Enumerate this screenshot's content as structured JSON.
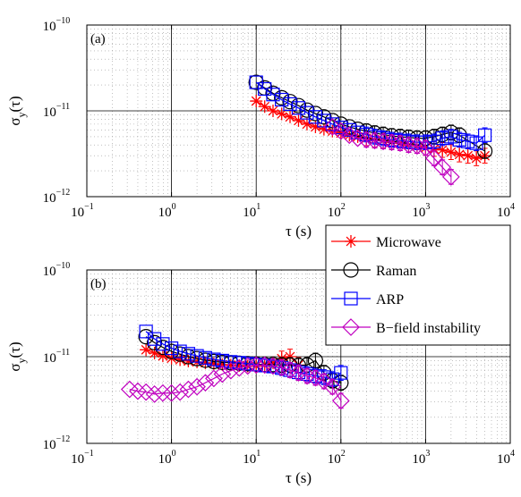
{
  "chart_data": [
    {
      "panel_label": "(a)",
      "type": "line",
      "x_scale": "log",
      "y_scale": "log",
      "xlim": [
        0.1,
        10000
      ],
      "ylim": [
        1e-12,
        1e-10
      ],
      "x_ticks": [
        {
          "base": "10",
          "exp": "−1"
        },
        {
          "base": "10",
          "exp": "0"
        },
        {
          "base": "10",
          "exp": "1"
        },
        {
          "base": "10",
          "exp": "2"
        },
        {
          "base": "10",
          "exp": "3"
        },
        {
          "base": "10",
          "exp": "4"
        }
      ],
      "y_ticks": [
        {
          "base": "10",
          "exp": "−12"
        },
        {
          "base": "10",
          "exp": "−11"
        },
        {
          "base": "10",
          "exp": "−10"
        }
      ],
      "xlabel": "τ (s)",
      "ylabel": {
        "main": "σ",
        "sub": "y",
        "tail": "(τ)"
      },
      "grid": true,
      "series": [
        {
          "name": "Microwave",
          "color": "#ff0000",
          "marker": "star",
          "x": [
            10,
            12.6,
            15.8,
            20,
            25.1,
            31.6,
            39.8,
            50.1,
            63.1,
            79.4,
            100,
            126,
            158,
            200,
            251,
            316,
            398,
            501,
            631,
            794,
            1000,
            1260,
            1580,
            2000,
            2510,
            3160,
            3980,
            5010
          ],
          "y": [
            1.3e-11,
            1.12e-11,
            1e-11,
            9.2e-12,
            8.5e-12,
            7.7e-12,
            7e-12,
            6.5e-12,
            6.1e-12,
            5.8e-12,
            5.5e-12,
            5.2e-12,
            5e-12,
            4.8e-12,
            4.6e-12,
            4.5e-12,
            4.3e-12,
            4.2e-12,
            4e-12,
            3.9e-12,
            3.7e-12,
            3.6e-12,
            3.5e-12,
            3.3e-12,
            3.1e-12,
            3e-12,
            2.8e-12,
            3e-12
          ]
        },
        {
          "name": "Raman",
          "color": "#000000",
          "marker": "circle",
          "x": [
            10,
            12.6,
            15.8,
            20,
            25.1,
            31.6,
            39.8,
            50.1,
            63.1,
            79.4,
            100,
            126,
            158,
            200,
            251,
            316,
            398,
            501,
            631,
            794,
            1000,
            1260,
            1580,
            2000,
            2510,
            5010
          ],
          "y": [
            2.15e-11,
            1.85e-11,
            1.6e-11,
            1.42e-11,
            1.28e-11,
            1.15e-11,
            1.02e-11,
            9.3e-12,
            8.5e-12,
            7.7e-12,
            7e-12,
            6.5e-12,
            6.1e-12,
            5.8e-12,
            5.5e-12,
            5.3e-12,
            5.1e-12,
            5e-12,
            4.9e-12,
            4.8e-12,
            4.8e-12,
            5e-12,
            5.3e-12,
            5.6e-12,
            5.2e-12,
            3.4e-12
          ]
        },
        {
          "name": "ARP",
          "color": "#0000ff",
          "marker": "square",
          "x": [
            10,
            12.6,
            15.8,
            20,
            25.1,
            31.6,
            39.8,
            50.1,
            63.1,
            79.4,
            100,
            126,
            158,
            200,
            251,
            316,
            398,
            501,
            631,
            794,
            1000,
            1260,
            1580,
            2000,
            2510,
            3160,
            3980,
            5010
          ],
          "y": [
            2.15e-11,
            1.8e-11,
            1.55e-11,
            1.35e-11,
            1.2e-11,
            1.08e-11,
            9.5e-12,
            8.5e-12,
            7.7e-12,
            7e-12,
            6.4e-12,
            6e-12,
            5.6e-12,
            5.3e-12,
            5e-12,
            4.8e-12,
            4.6e-12,
            4.5e-12,
            4.4e-12,
            4.3e-12,
            4.3e-12,
            4.4e-12,
            4.8e-12,
            5e-12,
            4.6e-12,
            4.4e-12,
            4.2e-12,
            5.2e-12
          ]
        },
        {
          "name": "B−field instability",
          "color": "#c000c0",
          "marker": "diamond",
          "x": [
            79.4,
            100,
            126,
            158,
            200,
            251,
            316,
            398,
            501,
            631,
            794,
            1000,
            1260,
            1580,
            2000
          ],
          "y": [
            6.5e-12,
            5.8e-12,
            5.2e-12,
            4.8e-12,
            4.6e-12,
            4.5e-12,
            4.4e-12,
            4.3e-12,
            4.2e-12,
            4e-12,
            3.9e-12,
            3.7e-12,
            2.8e-12,
            2.2e-12,
            1.7e-12
          ]
        }
      ]
    },
    {
      "panel_label": "(b)",
      "type": "line",
      "x_scale": "log",
      "y_scale": "log",
      "xlim": [
        0.1,
        10000
      ],
      "ylim": [
        1e-12,
        1e-10
      ],
      "x_ticks": [
        {
          "base": "10",
          "exp": "−1"
        },
        {
          "base": "10",
          "exp": "0"
        },
        {
          "base": "10",
          "exp": "1"
        },
        {
          "base": "10",
          "exp": "2"
        },
        {
          "base": "10",
          "exp": "3"
        },
        {
          "base": "10",
          "exp": "4"
        }
      ],
      "y_ticks": [
        {
          "base": "10",
          "exp": "−12"
        },
        {
          "base": "10",
          "exp": "−11"
        },
        {
          "base": "10",
          "exp": "−10"
        }
      ],
      "xlabel": "τ (s)",
      "ylabel": {
        "main": "σ",
        "sub": "y",
        "tail": "(τ)"
      },
      "grid": true,
      "legend_position": "top-right",
      "series": [
        {
          "name": "Microwave",
          "color": "#ff0000",
          "marker": "star",
          "x": [
            0.5,
            0.63,
            0.79,
            1.0,
            1.26,
            1.58,
            2.0,
            2.51,
            3.16,
            3.98,
            5.01,
            6.31,
            7.94,
            10,
            12.6,
            15.8,
            20,
            25.1,
            31.6
          ],
          "y": [
            1.2e-11,
            1.1e-11,
            1.02e-11,
            9.6e-12,
            9.2e-12,
            8.9e-12,
            8.7e-12,
            8.5e-12,
            8.3e-12,
            8.1e-12,
            8e-12,
            7.9e-12,
            7.8e-12,
            7.8e-12,
            8e-12,
            8.5e-12,
            9.5e-12,
            1e-11,
            8e-12
          ]
        },
        {
          "name": "Raman",
          "color": "#000000",
          "marker": "circle",
          "x": [
            0.5,
            0.63,
            0.79,
            1.0,
            1.26,
            1.58,
            2.0,
            2.51,
            3.16,
            3.98,
            5.01,
            6.31,
            7.94,
            10,
            12.6,
            15.8,
            20,
            25.1,
            31.6,
            39.8,
            50.1,
            63.1,
            79.4,
            100
          ],
          "y": [
            1.7e-11,
            1.45e-11,
            1.28e-11,
            1.15e-11,
            1.07e-11,
            1e-11,
            9.5e-12,
            9.1e-12,
            8.8e-12,
            8.6e-12,
            8.5e-12,
            8.4e-12,
            8.3e-12,
            8.2e-12,
            8.1e-12,
            8.1e-12,
            8e-12,
            8e-12,
            7.9e-12,
            8e-12,
            9e-12,
            6.5e-12,
            5.3e-12,
            5e-12
          ]
        },
        {
          "name": "ARP",
          "color": "#0000ff",
          "marker": "square",
          "x": [
            0.5,
            0.63,
            0.79,
            1.0,
            1.26,
            1.58,
            2.0,
            2.51,
            3.16,
            3.98,
            5.01,
            6.31,
            7.94,
            10,
            12.6,
            15.8,
            20,
            25.1,
            31.6,
            39.8,
            50.1,
            63.1,
            79.4,
            100
          ],
          "y": [
            1.95e-11,
            1.6e-11,
            1.4e-11,
            1.25e-11,
            1.15e-11,
            1.08e-11,
            1.02e-11,
            9.7e-12,
            9.3e-12,
            9e-12,
            8.7e-12,
            8.5e-12,
            8.3e-12,
            8.1e-12,
            7.9e-12,
            7.7e-12,
            7.4e-12,
            7e-12,
            6.6e-12,
            6.3e-12,
            6e-12,
            5.8e-12,
            5.5e-12,
            6.5e-12
          ]
        },
        {
          "name": "B−field instability",
          "color": "#c000c0",
          "marker": "diamond",
          "x": [
            0.32,
            0.4,
            0.5,
            0.63,
            0.79,
            1.0,
            1.26,
            1.58,
            2.0,
            2.51,
            3.16,
            3.98,
            5.01,
            6.31,
            7.94,
            10,
            12.6,
            15.8,
            20,
            25.1,
            31.6,
            39.8,
            50.1,
            63.1,
            79.4,
            100
          ],
          "y": [
            4.2e-12,
            4e-12,
            3.9e-12,
            3.7e-12,
            3.8e-12,
            3.8e-12,
            3.9e-12,
            4.2e-12,
            4.5e-12,
            5e-12,
            5.6e-12,
            6.3e-12,
            6.9e-12,
            7.4e-12,
            7.8e-12,
            8e-12,
            8e-12,
            7.8e-12,
            7.5e-12,
            7e-12,
            6.5e-12,
            6e-12,
            5.7e-12,
            5.2e-12,
            4.5e-12,
            3.1e-12
          ]
        }
      ]
    }
  ]
}
